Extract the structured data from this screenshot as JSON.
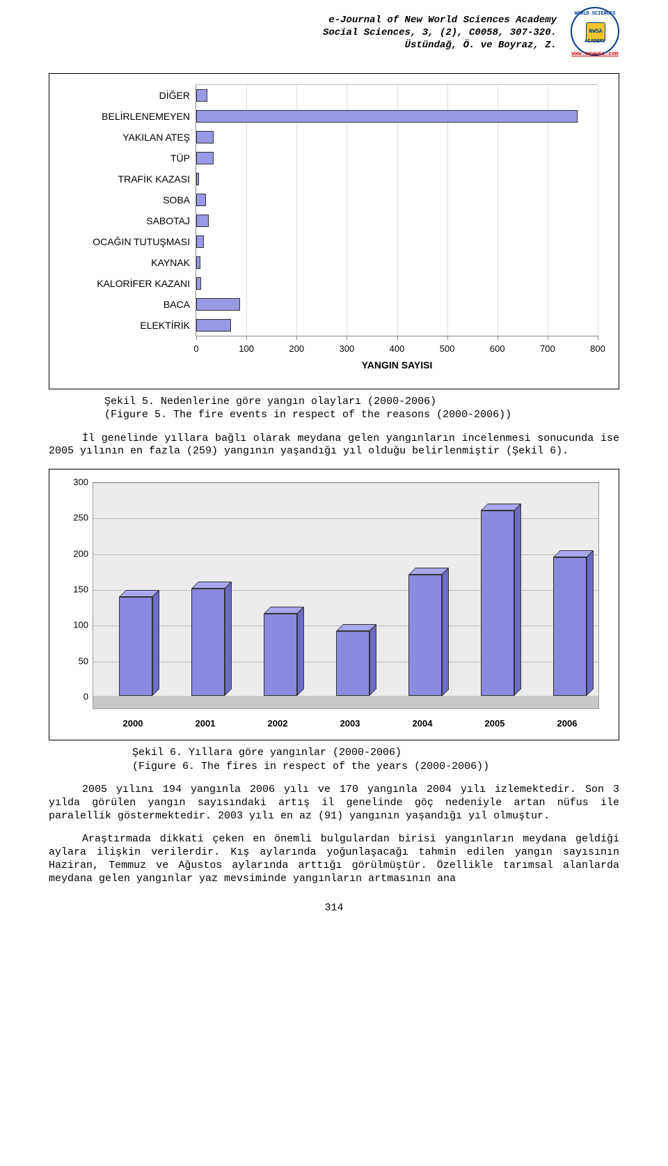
{
  "header": {
    "line1": "e-Journal of New World Sciences Academy",
    "line2": "Social Sciences, 3, (2), C0058, 307-320.",
    "line3": "Üstündağ, Ö. ve Boyraz, Z."
  },
  "logo": {
    "top_text": "WORLD SCIENCES",
    "bottom_text": "ACADEMY",
    "inner": "NWSA",
    "url": "www.newwsa.com"
  },
  "chart1": {
    "type": "horizontal_bar",
    "categories": [
      "DİĞER",
      "BELİRLENEMEYEN",
      "YAKILAN ATEŞ",
      "TÜP",
      "TRAFİK KAZASI",
      "SOBA",
      "SABOTAJ",
      "OCAĞIN TUTUŞMASI",
      "KAYNAK",
      "KALORİFER KAZANI",
      "BACA",
      "ELEKTİRİK"
    ],
    "values": [
      22,
      760,
      35,
      35,
      6,
      20,
      25,
      15,
      8,
      10,
      88,
      70
    ],
    "bar_color": "#9999e6",
    "bar_border": "#333333",
    "xaxis": {
      "min": 0,
      "max": 800,
      "step": 100,
      "title": "YANGIN SAYISI"
    },
    "label_fontsize": 14,
    "tick_fontsize": 13,
    "background": "#ffffff",
    "grid_color": "#dddddd"
  },
  "caption1": {
    "line1": "Şekil 5. Nedenlerine göre yangın olayları (2000-2006)",
    "line2": "(Figure 5. The fire events in respect of the reasons (2000-2006))"
  },
  "para1": "İl genelinde yıllara bağlı olarak meydana gelen yangınların incelenmesi sonucunda ise 2005 yılının en fazla (259) yangının yaşandığı yıl olduğu belirlenmiştir (Şekil 6).",
  "chart2": {
    "type": "bar_3d",
    "categories": [
      "2000",
      "2001",
      "2002",
      "2003",
      "2004",
      "2005",
      "2006"
    ],
    "values": [
      138,
      150,
      115,
      91,
      170,
      259,
      194
    ],
    "bar_color_front": "#8a8ae0",
    "bar_color_top": "#a8a8f0",
    "bar_color_side": "#6b6bc8",
    "bar_border": "#333333",
    "yaxis": {
      "min": 0,
      "max": 300,
      "step": 50
    },
    "plot_background": "#ececec",
    "floor_color": "#c8c8c8",
    "grid_color": "#bbbbbb",
    "label_fontsize": 13
  },
  "caption2": {
    "line1": "Şekil 6. Yıllara göre yangınlar (2000-2006)",
    "line2": "(Figure 6. The fires in respect of the years (2000-2006))"
  },
  "para2": "2005 yılını 194 yangınla 2006 yılı ve 170 yangınla 2004 yılı izlemektedir. Son 3 yılda görülen yangın sayısındaki artış il genelinde göç nedeniyle artan nüfus ile paralellik göstermektedir. 2003 yılı en az (91) yangının yaşandığı yıl olmuştur.",
  "para3": "Araştırmada dikkati çeken en önemli bulgulardan birisi yangınların meydana geldiği aylara ilişkin verilerdir. Kış aylarında yoğunlaşacağı tahmin edilen yangın sayısının Haziran, Temmuz ve Ağustos aylarında arttığı görülmüştür. Özellikle tarımsal alanlarda meydana gelen yangınlar yaz mevsiminde yangınların artmasının ana",
  "pagenum": "314"
}
